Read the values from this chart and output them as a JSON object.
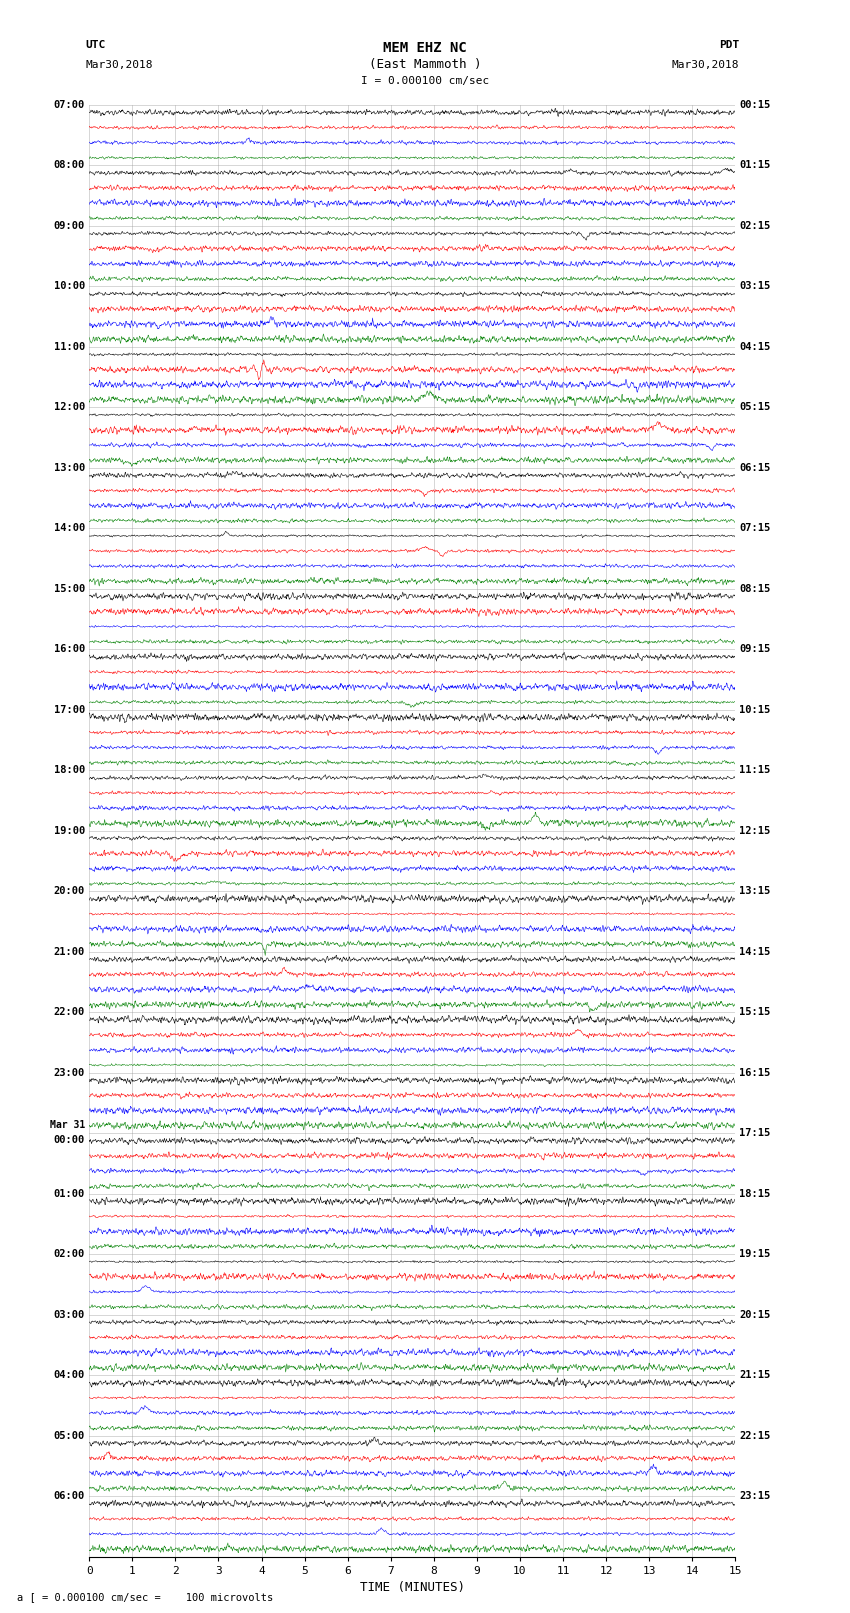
{
  "title_line1": "MEM EHZ NC",
  "title_line2": "(East Mammoth )",
  "title_line3": "I = 0.000100 cm/sec",
  "label_utc": "UTC",
  "label_date_utc": "Mar30,2018",
  "label_pdt": "PDT",
  "label_date_pdt": "Mar30,2018",
  "xlabel": "TIME (MINUTES)",
  "footer": "a [ = 0.000100 cm/sec =    100 microvolts",
  "xlim": [
    0,
    15
  ],
  "xticks": [
    0,
    1,
    2,
    3,
    4,
    5,
    6,
    7,
    8,
    9,
    10,
    11,
    12,
    13,
    14,
    15
  ],
  "trace_colors": [
    "black",
    "red",
    "blue",
    "green"
  ],
  "background_color": "#ffffff",
  "grid_color": "#999999",
  "figsize": [
    8.5,
    16.13
  ],
  "dpi": 100,
  "left_labels": [
    "07:00",
    "08:00",
    "09:00",
    "10:00",
    "11:00",
    "12:00",
    "13:00",
    "14:00",
    "15:00",
    "16:00",
    "17:00",
    "18:00",
    "19:00",
    "20:00",
    "21:00",
    "22:00",
    "23:00",
    "00:00",
    "01:00",
    "02:00",
    "03:00",
    "04:00",
    "05:00",
    "06:00"
  ],
  "mar31_block": 17,
  "right_labels": [
    "00:15",
    "01:15",
    "02:15",
    "03:15",
    "04:15",
    "05:15",
    "06:15",
    "07:15",
    "08:15",
    "09:15",
    "10:15",
    "11:15",
    "12:15",
    "13:15",
    "14:15",
    "15:15",
    "16:15",
    "17:15",
    "18:15",
    "19:15",
    "20:15",
    "21:15",
    "22:15",
    "23:15"
  ],
  "hour_blocks": 24,
  "traces_per_block": 4,
  "n_points": 1800,
  "base_amp": 0.12,
  "noise_seed": 12345
}
